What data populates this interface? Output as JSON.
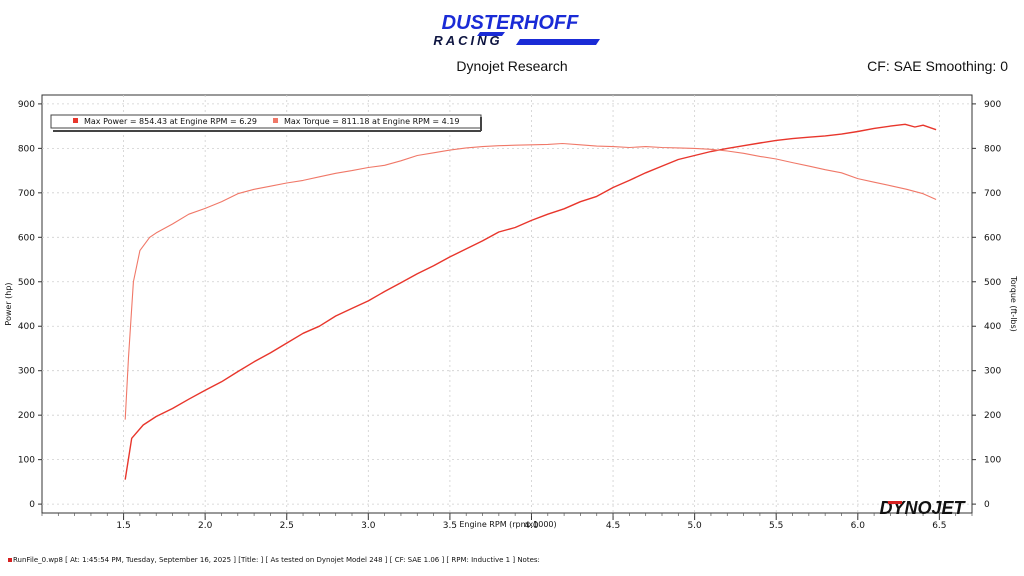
{
  "header": {
    "logo_line1": "DUSTERHOFF",
    "logo_line2": "RACING",
    "subtitle": "Dynojet Research",
    "cf_text": "CF: SAE Smoothing: 0"
  },
  "brand": {
    "primary": "#1a2bd6",
    "power_color": "#e8362c",
    "torque_color": "#f07868"
  },
  "watermark": "DYNOJET",
  "legend": {
    "power": "Max Power = 854.43 at Engine RPM = 6.29",
    "torque": "Max Torque = 811.18 at Engine RPM = 4.19"
  },
  "footer": "RunFile_0.wp8 [ At: 1:45:54 PM, Tuesday, September 16, 2025 ] [Title: ]  [ As tested on Dynojet Model 248 ] [ CF: SAE 1.06 ] [ RPM: Inductive 1 ] Notes:",
  "chart_data": {
    "type": "line",
    "xlabel": "Engine RPM (rpmx1000)",
    "ylabel_left": "Power (hp)",
    "ylabel_right": "Torque (ft-lbs)",
    "xlim": [
      1.0,
      6.7
    ],
    "ylim": [
      -20,
      920
    ],
    "xticks": [
      "1.5",
      "2.0",
      "2.5",
      "3.0",
      "3.5",
      "4.0",
      "4.5",
      "5.0",
      "5.5",
      "6.0",
      "6.5"
    ],
    "yticks": [
      "0",
      "100",
      "200",
      "300",
      "400",
      "500",
      "600",
      "700",
      "800",
      "900"
    ],
    "grid": true,
    "legend_position": "top-left",
    "series": [
      {
        "name": "Power",
        "x": [
          1.51,
          1.55,
          1.62,
          1.7,
          1.8,
          1.9,
          2.0,
          2.1,
          2.2,
          2.3,
          2.4,
          2.5,
          2.6,
          2.7,
          2.8,
          2.9,
          3.0,
          3.1,
          3.2,
          3.3,
          3.4,
          3.5,
          3.6,
          3.7,
          3.8,
          3.9,
          4.0,
          4.1,
          4.2,
          4.3,
          4.4,
          4.5,
          4.6,
          4.7,
          4.8,
          4.9,
          5.0,
          5.1,
          5.2,
          5.3,
          5.4,
          5.5,
          5.6,
          5.7,
          5.8,
          5.9,
          6.0,
          6.1,
          6.2,
          6.29,
          6.35,
          6.4,
          6.48
        ],
        "values": [
          55,
          148,
          178,
          197,
          215,
          236,
          256,
          275,
          298,
          320,
          340,
          362,
          384,
          400,
          423,
          440,
          457,
          478,
          498,
          518,
          536,
          556,
          574,
          592,
          612,
          622,
          638,
          652,
          664,
          680,
          692,
          712,
          728,
          745,
          760,
          775,
          784,
          793,
          800,
          806,
          812,
          818,
          822,
          825,
          828,
          832,
          838,
          845,
          850,
          854,
          848,
          852,
          842
        ]
      },
      {
        "name": "Torque",
        "x": [
          1.51,
          1.53,
          1.56,
          1.6,
          1.66,
          1.7,
          1.8,
          1.9,
          2.0,
          2.1,
          2.2,
          2.3,
          2.4,
          2.5,
          2.6,
          2.7,
          2.8,
          2.9,
          3.0,
          3.1,
          3.2,
          3.3,
          3.4,
          3.5,
          3.6,
          3.7,
          3.8,
          3.9,
          4.0,
          4.1,
          4.19,
          4.3,
          4.4,
          4.5,
          4.6,
          4.7,
          4.8,
          4.9,
          5.0,
          5.1,
          5.2,
          5.3,
          5.4,
          5.5,
          5.6,
          5.7,
          5.8,
          5.9,
          6.0,
          6.1,
          6.2,
          6.3,
          6.4,
          6.48
        ],
        "values": [
          190,
          330,
          500,
          570,
          600,
          610,
          630,
          652,
          665,
          680,
          698,
          708,
          715,
          722,
          728,
          736,
          744,
          750,
          757,
          762,
          772,
          784,
          790,
          796,
          801,
          804,
          806,
          807,
          808,
          809,
          811,
          808,
          805,
          804,
          802,
          804,
          802,
          801,
          800,
          798,
          794,
          789,
          782,
          776,
          768,
          760,
          752,
          745,
          732,
          724,
          716,
          708,
          698,
          685
        ]
      }
    ]
  }
}
